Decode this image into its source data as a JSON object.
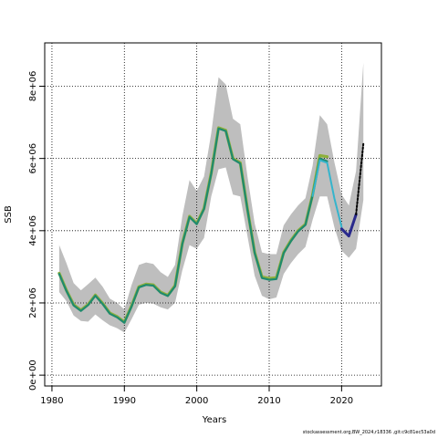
{
  "chart_data": {
    "type": "line",
    "xlabel": "Years",
    "ylabel": "SSB",
    "xlim": [
      1979,
      2025.5
    ],
    "ylim": [
      -300000,
      9200000
    ],
    "xticks": [
      1980,
      1990,
      2000,
      2010,
      2020
    ],
    "yticks": [
      0,
      2000000,
      4000000,
      6000000,
      8000000
    ],
    "ytick_labels": [
      "0e+00",
      "2e+06",
      "4e+06",
      "6e+06",
      "8e+06"
    ],
    "grid": true,
    "band": {
      "x": [
        1981,
        1982,
        1983,
        1984,
        1985,
        1986,
        1987,
        1988,
        1989,
        1990,
        1991,
        1992,
        1993,
        1994,
        1995,
        1996,
        1997,
        1998,
        1999,
        2000,
        2001,
        2002,
        2003,
        2004,
        2005,
        2006,
        2007,
        2008,
        2009,
        2010,
        2011,
        2012,
        2013,
        2014,
        2015,
        2016,
        2017,
        2018,
        2019,
        2020,
        2021,
        2022,
        2023
      ],
      "upper": [
        3600000,
        3100000,
        2550000,
        2350000,
        2520000,
        2700000,
        2450000,
        2120000,
        2000000,
        1820000,
        2500000,
        3050000,
        3120000,
        3080000,
        2850000,
        2720000,
        3050000,
        4400000,
        5400000,
        5100000,
        5500000,
        6700000,
        8250000,
        8050000,
        7100000,
        6950000,
        5500000,
        4200000,
        3400000,
        3350000,
        3350000,
        4150000,
        4450000,
        4700000,
        4900000,
        5800000,
        7200000,
        6950000,
        5900000,
        5000000,
        4700000,
        5650000,
        8650000
      ],
      "lower": [
        2300000,
        2050000,
        1650000,
        1500000,
        1480000,
        1680000,
        1520000,
        1380000,
        1300000,
        1180000,
        1550000,
        1950000,
        2000000,
        1980000,
        1880000,
        1820000,
        2000000,
        2900000,
        3600000,
        3500000,
        3800000,
        4950000,
        5700000,
        5750000,
        5000000,
        4950000,
        3850000,
        2750000,
        2200000,
        2100000,
        2150000,
        2800000,
        3100000,
        3350000,
        3550000,
        4300000,
        4950000,
        4950000,
        4100000,
        3450000,
        3250000,
        3500000,
        4850000
      ]
    },
    "series": [
      {
        "x": [
          1981,
          1982,
          1983,
          1984,
          1985,
          1986,
          1987,
          1988,
          1989,
          1990,
          1991,
          1992,
          1993,
          1994,
          1995,
          1996,
          1997,
          1998,
          1999,
          2000,
          2001,
          2002,
          2003,
          2004,
          2005,
          2006,
          2007,
          2008,
          2009,
          2010,
          2011,
          2012,
          2013,
          2014,
          2015,
          2016,
          2017,
          2018
        ],
        "y": [
          2820000,
          2350000,
          1950000,
          1800000,
          1960000,
          2220000,
          1990000,
          1720000,
          1620000,
          1470000,
          1920000,
          2450000,
          2520000,
          2500000,
          2300000,
          2210000,
          2480000,
          3650000,
          4400000,
          4200000,
          4620000,
          5600000,
          6850000,
          6780000,
          6000000,
          5880000,
          4600000,
          3400000,
          2720000,
          2680000,
          2700000,
          3400000,
          3730000,
          4000000,
          4180000,
          5000000,
          6080000,
          6050000
        ],
        "color": "#8db03c",
        "width": 3.2
      },
      {
        "x": [
          1981,
          1982,
          1983,
          1984,
          1985,
          1986,
          1987,
          1988,
          1989,
          1990,
          1991,
          1992,
          1993,
          1994,
          1995,
          1996,
          1997,
          1998,
          1999,
          2000,
          2001,
          2002,
          2003,
          2004,
          2005,
          2006,
          2007,
          2008,
          2009,
          2010,
          2011,
          2012,
          2013,
          2014,
          2015,
          2016,
          2017,
          2018
        ],
        "y": [
          2800000,
          2330000,
          1930000,
          1780000,
          1940000,
          2200000,
          1970000,
          1700000,
          1600000,
          1450000,
          1900000,
          2430000,
          2500000,
          2480000,
          2280000,
          2190000,
          2460000,
          3630000,
          4380000,
          4180000,
          4600000,
          5580000,
          6830000,
          6760000,
          5980000,
          5860000,
          4580000,
          3380000,
          2690000,
          2640000,
          2660000,
          3380000,
          3710000,
          3980000,
          4160000,
          4980000,
          6000000,
          5920000
        ],
        "color": "#1f8a6e",
        "width": 2.2
      },
      {
        "x": [
          2016,
          2017,
          2018,
          2019,
          2020
        ],
        "y": [
          4960000,
          5950000,
          5880000,
          4900000,
          4100000
        ],
        "color": "#35b4cc",
        "width": 2
      },
      {
        "x": [
          2020,
          2021,
          2022
        ],
        "y": [
          4050000,
          3850000,
          4450000
        ],
        "color": "#2a2a8c",
        "width": 3
      },
      {
        "x": [
          2022,
          2023
        ],
        "y": [
          4450000,
          6400000
        ],
        "color": "#000000",
        "width": 2,
        "dashed": true
      }
    ]
  },
  "footer": "stockassessment.org,BW_2024,r18336 ,git:c9c81ec53a0d"
}
